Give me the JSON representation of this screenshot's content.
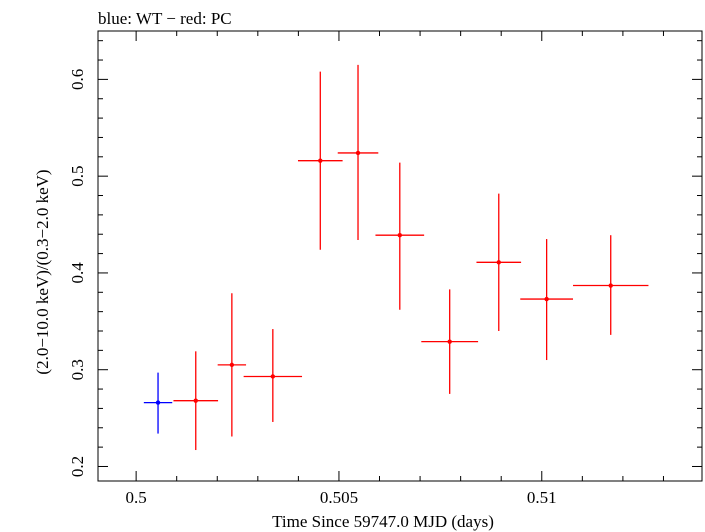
{
  "chart_data": {
    "type": "scatter",
    "title": "blue: WT − red: PC",
    "xlabel": "Time Since 59747.0 MJD (days)",
    "ylabel": "(2.0−10.0 keV)/(0.3−2.0 keV)",
    "xlim": [
      0.49906,
      0.51395
    ],
    "ylim": [
      0.185,
      0.65
    ],
    "x_ticks": [
      {
        "value": 0.5,
        "label": "0.5"
      },
      {
        "value": 0.505,
        "label": "0.505"
      },
      {
        "value": 0.51,
        "label": "0.51"
      }
    ],
    "y_ticks": [
      {
        "value": 0.2,
        "label": "0.2"
      },
      {
        "value": 0.3,
        "label": "0.3"
      },
      {
        "value": 0.4,
        "label": "0.4"
      },
      {
        "value": 0.5,
        "label": "0.5"
      },
      {
        "value": 0.6,
        "label": "0.6"
      }
    ],
    "grid": false,
    "series": [
      {
        "name": "WT",
        "color": "#0000ff",
        "points": [
          {
            "x": 0.50054,
            "xerr": 0.00035,
            "y": 0.266,
            "ylo": 0.234,
            "yhi": 0.297
          }
        ]
      },
      {
        "name": "PC",
        "color": "#ff0000",
        "points": [
          {
            "x": 0.50147,
            "xerr": 0.00055,
            "y": 0.268,
            "ylo": 0.217,
            "yhi": 0.319
          },
          {
            "x": 0.50236,
            "xerr": 0.00035,
            "y": 0.305,
            "ylo": 0.231,
            "yhi": 0.379
          },
          {
            "x": 0.50337,
            "xerr": 0.00072,
            "y": 0.293,
            "ylo": 0.246,
            "yhi": 0.342
          },
          {
            "x": 0.50454,
            "xerr": 0.00055,
            "y": 0.516,
            "ylo": 0.424,
            "yhi": 0.608
          },
          {
            "x": 0.50547,
            "xerr": 0.0005,
            "y": 0.524,
            "ylo": 0.434,
            "yhi": 0.615
          },
          {
            "x": 0.5065,
            "xerr": 0.0006,
            "y": 0.439,
            "ylo": 0.362,
            "yhi": 0.514
          },
          {
            "x": 0.50773,
            "xerr": 0.0007,
            "y": 0.329,
            "ylo": 0.275,
            "yhi": 0.383
          },
          {
            "x": 0.50894,
            "xerr": 0.00055,
            "y": 0.411,
            "ylo": 0.34,
            "yhi": 0.482
          },
          {
            "x": 0.51012,
            "xerr": 0.00065,
            "y": 0.373,
            "ylo": 0.31,
            "yhi": 0.435
          },
          {
            "x": 0.5117,
            "xerr": 0.00093,
            "y": 0.387,
            "ylo": 0.336,
            "yhi": 0.439
          }
        ]
      }
    ]
  }
}
